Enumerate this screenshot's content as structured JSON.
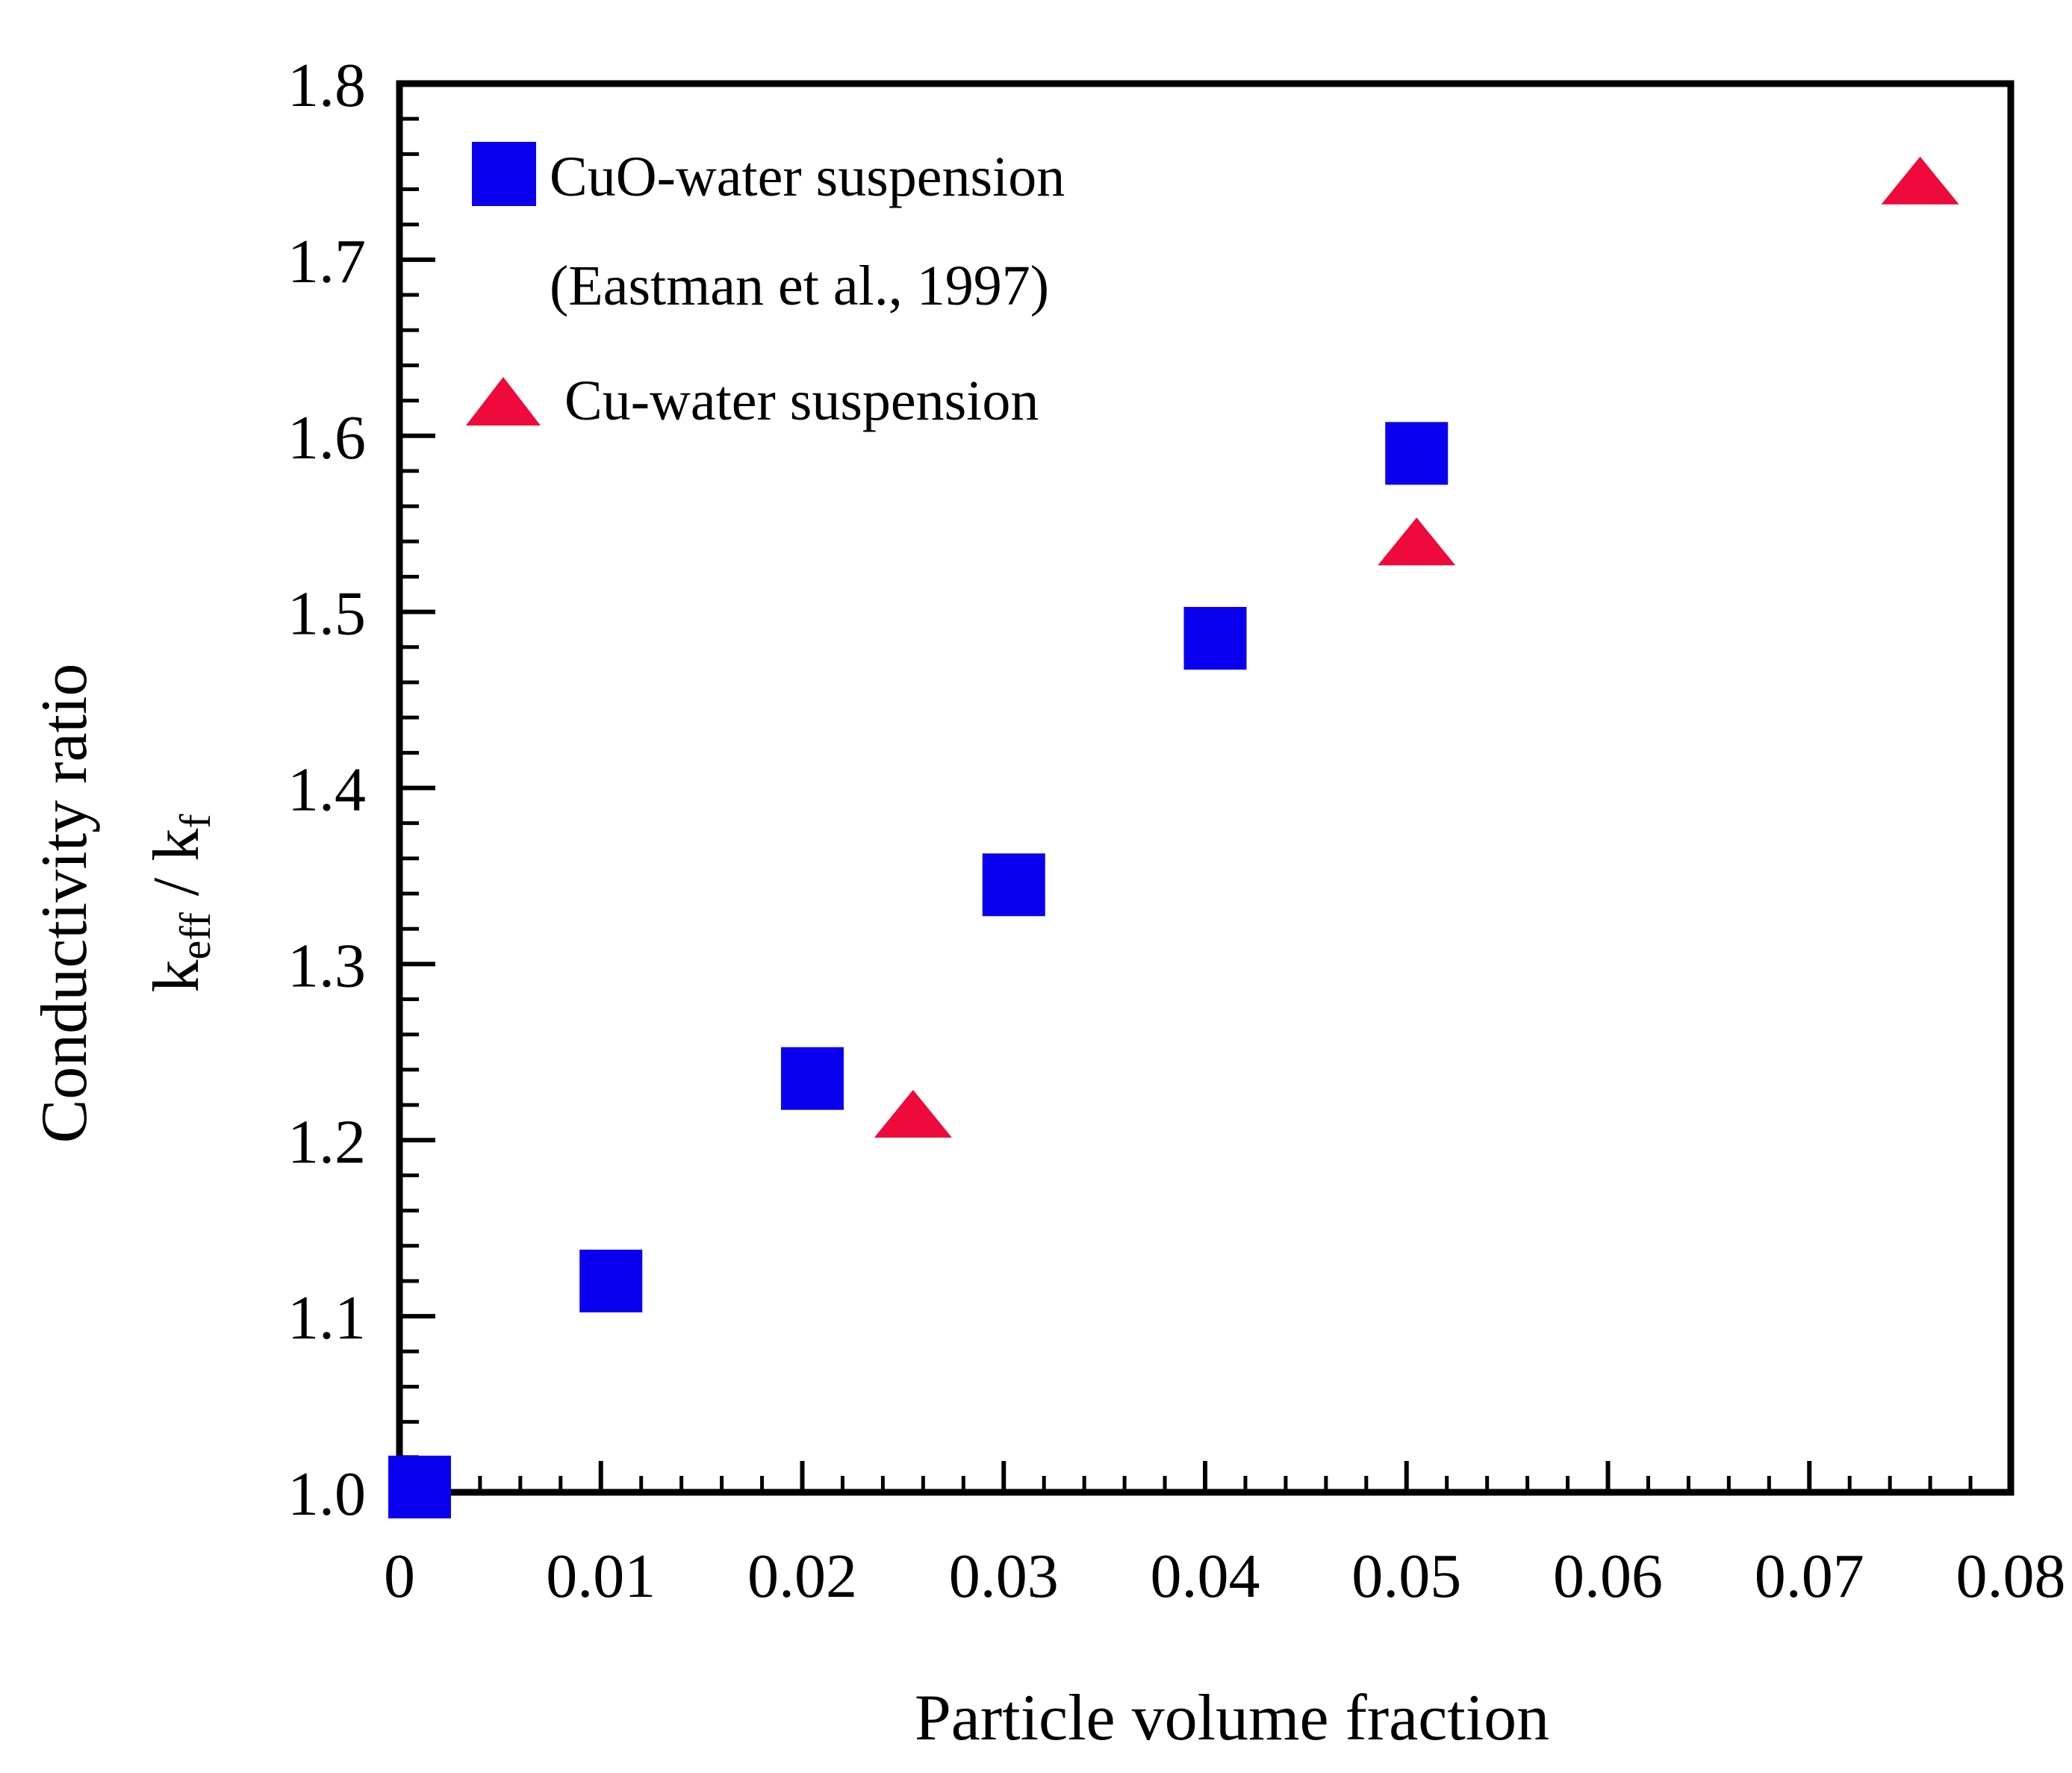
{
  "chart_data": {
    "type": "scatter",
    "title": "",
    "xlabel": "Particle volume fraction",
    "ylabel": "Conductivity ratio",
    "ylabel_formula": {
      "numerator_base": "k",
      "numerator_sub": "eff",
      "separator": " / ",
      "denominator_base": "k",
      "denominator_sub": "f"
    },
    "xlim": [
      0,
      0.08
    ],
    "ylim": [
      1.0,
      1.8
    ],
    "x_ticks": [
      0,
      0.01,
      0.02,
      0.03,
      0.04,
      0.05,
      0.06,
      0.07,
      0.08
    ],
    "x_tick_labels": [
      "0",
      "0.01",
      "0.02",
      "0.03",
      "0.04",
      "0.05",
      "0.06",
      "0.07",
      "0.08"
    ],
    "y_ticks": [
      1.0,
      1.1,
      1.2,
      1.3,
      1.4,
      1.5,
      1.6,
      1.7,
      1.8
    ],
    "y_tick_labels": [
      "1.0",
      "1.1",
      "1.2",
      "1.3",
      "1.4",
      "1.5",
      "1.6",
      "1.7",
      "1.8"
    ],
    "x_minor_step": 0.002,
    "y_minor_step": 0.02,
    "grid": false,
    "legend_position": "top-left",
    "series": [
      {
        "name": "CuO-water suspension",
        "legend_label": "CuO-water suspension",
        "legend_sublabel": "(Eastman et al., 1997)",
        "marker": "square",
        "color": "#0a00f0",
        "points": [
          {
            "x": 0.001,
            "y": 1.003
          },
          {
            "x": 0.0105,
            "y": 1.12
          },
          {
            "x": 0.0205,
            "y": 1.235
          },
          {
            "x": 0.0305,
            "y": 1.345
          },
          {
            "x": 0.0405,
            "y": 1.485
          },
          {
            "x": 0.0505,
            "y": 1.59
          }
        ]
      },
      {
        "name": "Cu-water suspension",
        "legend_label": "Cu-water suspension",
        "marker": "triangle",
        "color": "#ee0a3a",
        "points": [
          {
            "x": 0.0255,
            "y": 1.215
          },
          {
            "x": 0.0505,
            "y": 1.54
          },
          {
            "x": 0.0755,
            "y": 1.745
          }
        ]
      }
    ]
  }
}
